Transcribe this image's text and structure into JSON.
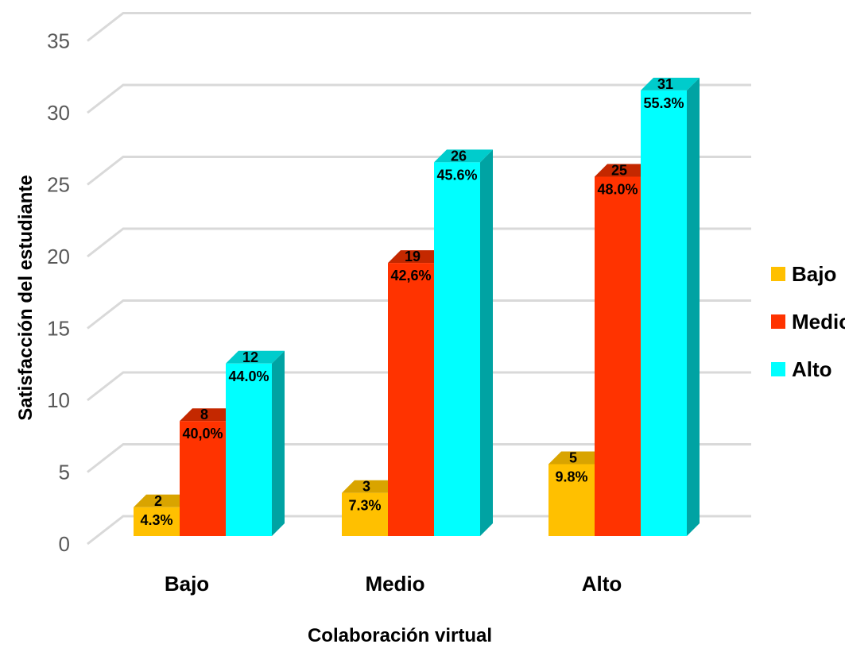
{
  "chart_data": {
    "type": "bar",
    "title": "",
    "xlabel": "Colaboración virtual",
    "ylabel": "Satisfacción del estudiante",
    "categories": [
      "Bajo",
      "Medio",
      "Alto"
    ],
    "ylim": [
      0,
      35
    ],
    "yticks": [
      "0",
      "5",
      "10",
      "15",
      "20",
      "25",
      "30",
      "35"
    ],
    "grid": true,
    "legend_position": "right",
    "style": "3d-clustered-column",
    "series": [
      {
        "name": "Bajo",
        "color": "#FFC000",
        "side_color": "#C09100",
        "top_color": "#D9A400",
        "values": [
          2,
          3,
          5
        ],
        "percent_labels": [
          "4.3%",
          "7.3%",
          "9.8%"
        ]
      },
      {
        "name": "Medio",
        "color": "#FF3300",
        "side_color": "#B82400",
        "top_color": "#C42800",
        "values": [
          8,
          19,
          25
        ],
        "percent_labels": [
          "40,0%",
          "42,6%",
          "48.0%"
        ]
      },
      {
        "name": "Alto",
        "color": "#00FFFF",
        "side_color": "#00A3A3",
        "top_color": "#00CCCC",
        "values": [
          12,
          26,
          31
        ],
        "percent_labels": [
          "44.0%",
          "45.6%",
          "55.3%"
        ]
      }
    ]
  }
}
